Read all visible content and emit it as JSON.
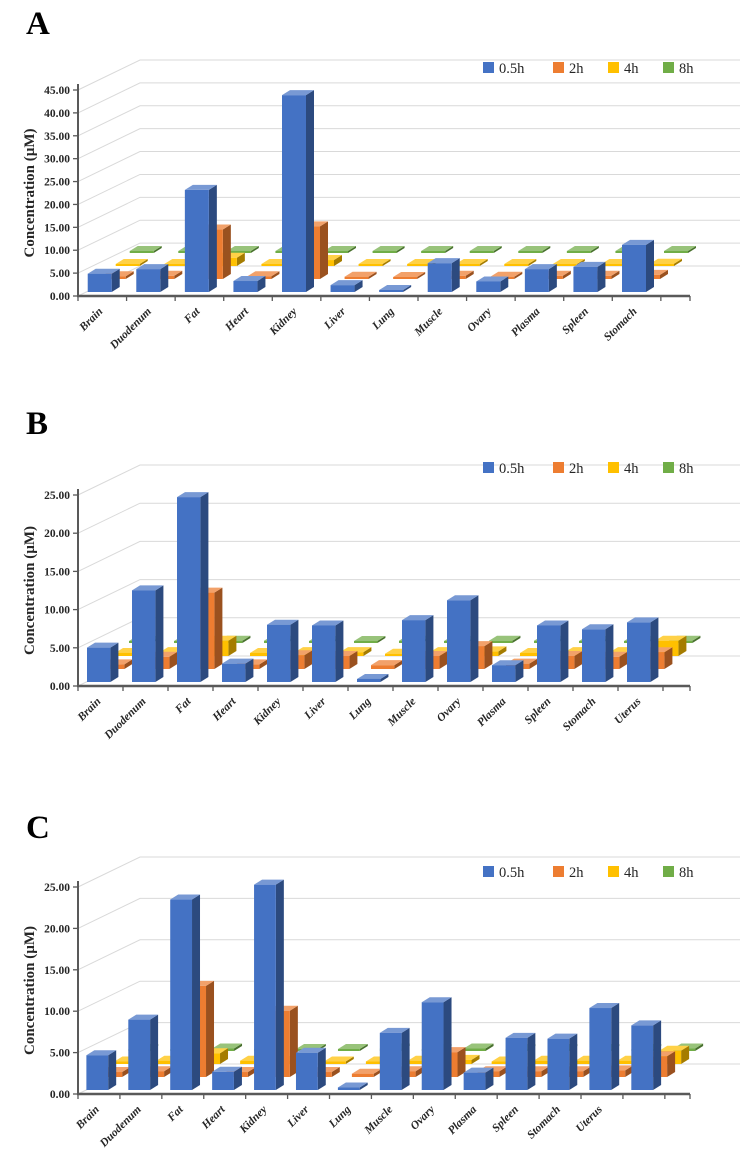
{
  "figure": {
    "background": "#ffffff",
    "axis_color": "#595959",
    "gridline_color": "#d9d9d9",
    "text_color": "#262626"
  },
  "chart_data": [
    {
      "type": "bar",
      "style_3d": true,
      "panel_label": "A",
      "ylabel": "Concentration (µM)",
      "ylim": [
        0,
        45
      ],
      "ytick_step": 5,
      "ytick_format_decimals": 2,
      "grid": true,
      "legend_position": "top-right",
      "legend": [
        "0.5h",
        "2h",
        "4h",
        "8h"
      ],
      "colors": [
        "#4472C4",
        "#ED7D31",
        "#FFC000",
        "#70AD47"
      ],
      "categories": [
        "Brain",
        "Duodenum",
        "Fat",
        "Heart",
        "Kidney",
        "Liver",
        "Lung",
        "Muscle",
        "Ovary",
        "Plasma",
        "Spleen",
        "Stomach"
      ],
      "series": [
        {
          "name": "0.5h",
          "values": [
            4.0,
            5.0,
            22.3,
            2.4,
            43.0,
            1.5,
            0.3,
            6.3,
            2.3,
            5.0,
            5.5,
            10.3
          ]
        },
        {
          "name": "2h",
          "values": [
            0.6,
            0.7,
            10.8,
            0.6,
            11.5,
            0.5,
            0.4,
            0.7,
            0.5,
            0.7,
            0.7,
            0.9
          ]
        },
        {
          "name": "4h",
          "values": [
            0.3,
            0.4,
            1.8,
            0.3,
            1.3,
            0.3,
            0.2,
            0.4,
            0.3,
            0.4,
            0.4,
            0.5
          ]
        },
        {
          "name": "8h",
          "values": [
            0.2,
            0.2,
            0.3,
            0.2,
            0.3,
            0.2,
            0.2,
            0.2,
            0.2,
            0.2,
            0.2,
            0.2
          ]
        }
      ]
    },
    {
      "type": "bar",
      "style_3d": true,
      "panel_label": "B",
      "ylabel": "Concentration (µM)",
      "ylim": [
        0,
        25
      ],
      "ytick_step": 5,
      "ytick_format_decimals": 2,
      "grid": true,
      "legend_position": "top-right",
      "legend": [
        "0.5h",
        "2h",
        "4h",
        "8h"
      ],
      "colors": [
        "#4472C4",
        "#ED7D31",
        "#FFC000",
        "#70AD47"
      ],
      "categories": [
        "Brain",
        "Duodenum",
        "Fat",
        "Heart",
        "Kidney",
        "Liver",
        "Lung",
        "Muscle",
        "Ovary",
        "Plasma",
        "Spleen",
        "Stomach",
        "Uterus"
      ],
      "series": [
        {
          "name": "0.5h",
          "values": [
            4.5,
            12.0,
            24.2,
            2.4,
            7.5,
            7.4,
            0.4,
            8.1,
            10.7,
            2.2,
            7.4,
            6.9,
            7.8
          ]
        },
        {
          "name": "2h",
          "values": [
            0.6,
            1.6,
            10.0,
            0.6,
            1.8,
            1.7,
            0.5,
            1.7,
            3.0,
            0.7,
            1.7,
            1.6,
            2.2
          ]
        },
        {
          "name": "4h",
          "values": [
            0.4,
            0.5,
            2.0,
            0.4,
            0.5,
            0.5,
            0.3,
            0.5,
            0.6,
            0.4,
            0.5,
            0.5,
            2.0
          ]
        },
        {
          "name": "8h",
          "values": [
            0.2,
            0.2,
            0.3,
            0.3,
            0.2,
            0.2,
            0.3,
            0.2,
            0.3,
            0.3,
            0.2,
            0.2,
            0.3
          ]
        }
      ]
    },
    {
      "type": "bar",
      "style_3d": true,
      "panel_label": "C",
      "ylabel": "Concentration (µM)",
      "ylim": [
        0,
        25
      ],
      "ytick_step": 5,
      "ytick_format_decimals": 2,
      "grid": true,
      "legend_position": "top-right",
      "legend": [
        "0.5h",
        "2h",
        "4h",
        "8h"
      ],
      "colors": [
        "#4472C4",
        "#ED7D31",
        "#FFC000",
        "#70AD47"
      ],
      "categories": [
        "Brain",
        "Duodenum",
        "Fat",
        "Heart",
        "Kidney",
        "Liver",
        "Lung",
        "Muscle",
        "Ovary",
        "Plasma",
        "Spleen",
        "Stomach",
        "Uterus",
        ""
      ],
      "series": [
        {
          "name": "0.5h",
          "values": [
            4.2,
            8.5,
            23.0,
            2.2,
            24.8,
            4.5,
            0.3,
            6.9,
            10.6,
            2.1,
            6.3,
            6.2,
            9.9,
            7.8
          ]
        },
        {
          "name": "2h",
          "values": [
            0.6,
            0.7,
            11.0,
            0.6,
            8.0,
            0.6,
            0.4,
            0.7,
            3.0,
            0.7,
            0.7,
            0.7,
            0.8,
            2.5
          ]
        },
        {
          "name": "4h",
          "values": [
            0.3,
            0.4,
            1.3,
            0.4,
            0.4,
            0.3,
            0.3,
            0.4,
            0.5,
            0.3,
            0.4,
            0.4,
            0.4,
            1.6
          ]
        },
        {
          "name": "8h",
          "values": [
            0.2,
            0.2,
            0.3,
            0.2,
            0.2,
            0.2,
            0.3,
            0.2,
            0.3,
            0.2,
            0.2,
            0.2,
            0.2,
            0.3
          ]
        }
      ]
    }
  ]
}
